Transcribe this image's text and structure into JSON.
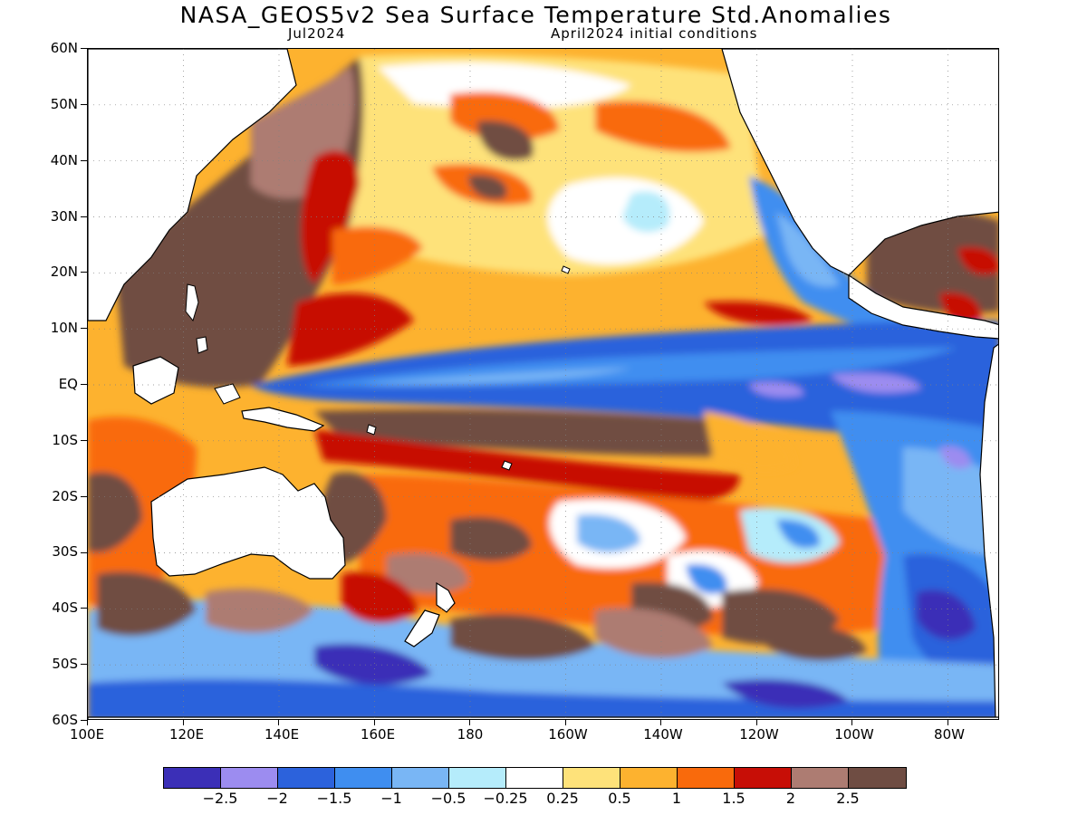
{
  "title": "NASA_GEOS5v2 Sea Surface Temperature Std.Anomalies",
  "subtitle_left": "Jul2024",
  "subtitle_right": "April2024 initial conditions",
  "lat_labels": [
    "60N",
    "50N",
    "40N",
    "30N",
    "20N",
    "10N",
    "EQ",
    "10S",
    "20S",
    "30S",
    "40S",
    "50S",
    "60S"
  ],
  "lon_labels": [
    "100E",
    "120E",
    "140E",
    "160E",
    "180",
    "160W",
    "140W",
    "120W",
    "100W",
    "80W"
  ],
  "colorbar": {
    "colors": [
      "#3b2fb7",
      "#9c8cf0",
      "#2c62dc",
      "#3f8ef0",
      "#79b6f5",
      "#b5ecfb",
      "#ffffff",
      "#fee27a",
      "#fdb22f",
      "#f96a0c",
      "#c70e06",
      "#ad7c72",
      "#6f4d43"
    ],
    "labels": [
      "−2.5",
      "−2",
      "−1.5",
      "−1",
      "−0.5",
      "−0.25",
      "0.25",
      "0.5",
      "1",
      "1.5",
      "2",
      "2.5"
    ]
  },
  "chart_data": {
    "type": "heatmap",
    "title": "NASA_GEOS5v2 Sea Surface Temperature Std.Anomalies",
    "subtitle": "Jul2024 | April2024 initial conditions",
    "x_range": [
      "100E",
      "70W"
    ],
    "y_range": [
      "60S",
      "60N"
    ],
    "legend": "bottom",
    "color_levels": [
      -2.5,
      -2,
      -1.5,
      -1,
      -0.5,
      -0.25,
      0.25,
      0.5,
      1,
      1.5,
      2,
      2.5
    ]
  }
}
